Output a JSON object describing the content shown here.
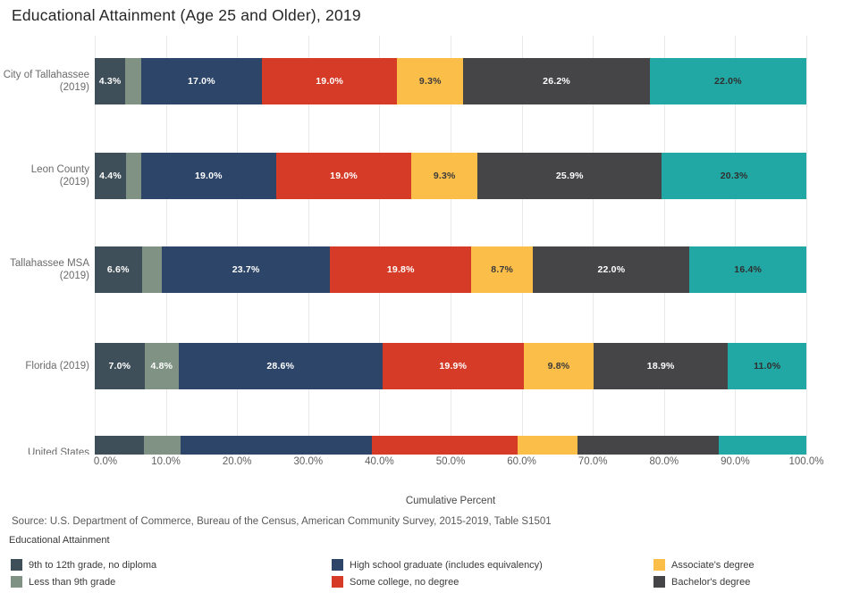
{
  "chart_data": {
    "type": "bar",
    "orientation": "horizontal",
    "stacked": true,
    "title": "Educational Attainment (Age 25 and Older), 2019",
    "xlabel": "Cumulative Percent",
    "xlim": [
      0,
      100
    ],
    "x_ticks": [
      "0.0%",
      "10.0%",
      "20.0%",
      "30.0%",
      "40.0%",
      "50.0%",
      "60.0%",
      "70.0%",
      "80.0%",
      "90.0%",
      "100.0%"
    ],
    "grid": "vertical",
    "legend_position": "bottom",
    "categories": [
      {
        "lines": [
          "City of Tallahassee",
          "(2019)"
        ]
      },
      {
        "lines": [
          "Leon County",
          "(2019)"
        ]
      },
      {
        "lines": [
          "Tallahassee MSA",
          "(2019)"
        ]
      },
      {
        "lines": [
          "Florida (2019)"
        ]
      },
      {
        "lines": [
          "United States",
          ""
        ]
      }
    ],
    "series": [
      {
        "name": "9th to 12th grade, no diploma",
        "color": "#3E4F59",
        "label_color": "#FFFFFF",
        "values": [
          4.3,
          4.4,
          6.6,
          7.0,
          6.9
        ],
        "labels": [
          "4.3%",
          "4.4%",
          "6.6%",
          "7.0%",
          ""
        ]
      },
      {
        "name": "Less than 9th grade",
        "color": "#7F9284",
        "label_color": "#FFFFFF",
        "values": [
          2.2,
          2.1,
          2.8,
          4.8,
          5.1
        ],
        "labels": [
          "",
          "",
          "",
          "4.8%",
          ""
        ]
      },
      {
        "name": "High school graduate (includes equivalency)",
        "color": "#2C4568",
        "label_color": "#FFFFFF",
        "values": [
          17.0,
          19.0,
          23.7,
          28.6,
          27.0
        ],
        "labels": [
          "17.0%",
          "19.0%",
          "23.7%",
          "28.6%",
          ""
        ]
      },
      {
        "name": "Some college, no degree",
        "color": "#D53B27",
        "label_color": "#FFFFFF",
        "values": [
          19.0,
          19.0,
          19.8,
          19.9,
          20.4
        ],
        "labels": [
          "19.0%",
          "19.0%",
          "19.8%",
          "19.9%",
          ""
        ]
      },
      {
        "name": "Associate's degree",
        "color": "#FBBE49",
        "label_color": "#3B3B3B",
        "values": [
          9.3,
          9.3,
          8.7,
          9.8,
          8.5
        ],
        "labels": [
          "9.3%",
          "9.3%",
          "8.7%",
          "9.8%",
          ""
        ]
      },
      {
        "name": "Bachelor's degree",
        "color": "#454548",
        "label_color": "#FFFFFF",
        "values": [
          26.2,
          25.9,
          22.0,
          18.9,
          19.8
        ],
        "labels": [
          "26.2%",
          "25.9%",
          "22.0%",
          "18.9%",
          ""
        ]
      },
      {
        "name": "",
        "color": "#22A8A4",
        "label_color": "#2F2F2F",
        "values": [
          22.0,
          20.3,
          16.4,
          11.0,
          12.3
        ],
        "labels": [
          "22.0%",
          "20.3%",
          "16.4%",
          "11.0%",
          ""
        ]
      }
    ]
  },
  "source_note": "Source: U.S. Department of Commerce, Bureau of the Census, American Community Survey, 2015-2019, Table S1501",
  "legend": {
    "title": "Educational Attainment",
    "items": [
      {
        "label": "9th to 12th grade, no diploma",
        "color": "#3E4F59"
      },
      {
        "label": "Less than 9th grade",
        "color": "#7F9284"
      },
      {
        "label": "High school graduate (includes equivalency)",
        "color": "#2C4568"
      },
      {
        "label": "Some college, no degree",
        "color": "#D53B27"
      },
      {
        "label": "Associate's degree",
        "color": "#FBBE49"
      },
      {
        "label": "Bachelor's degree",
        "color": "#454548"
      }
    ]
  }
}
